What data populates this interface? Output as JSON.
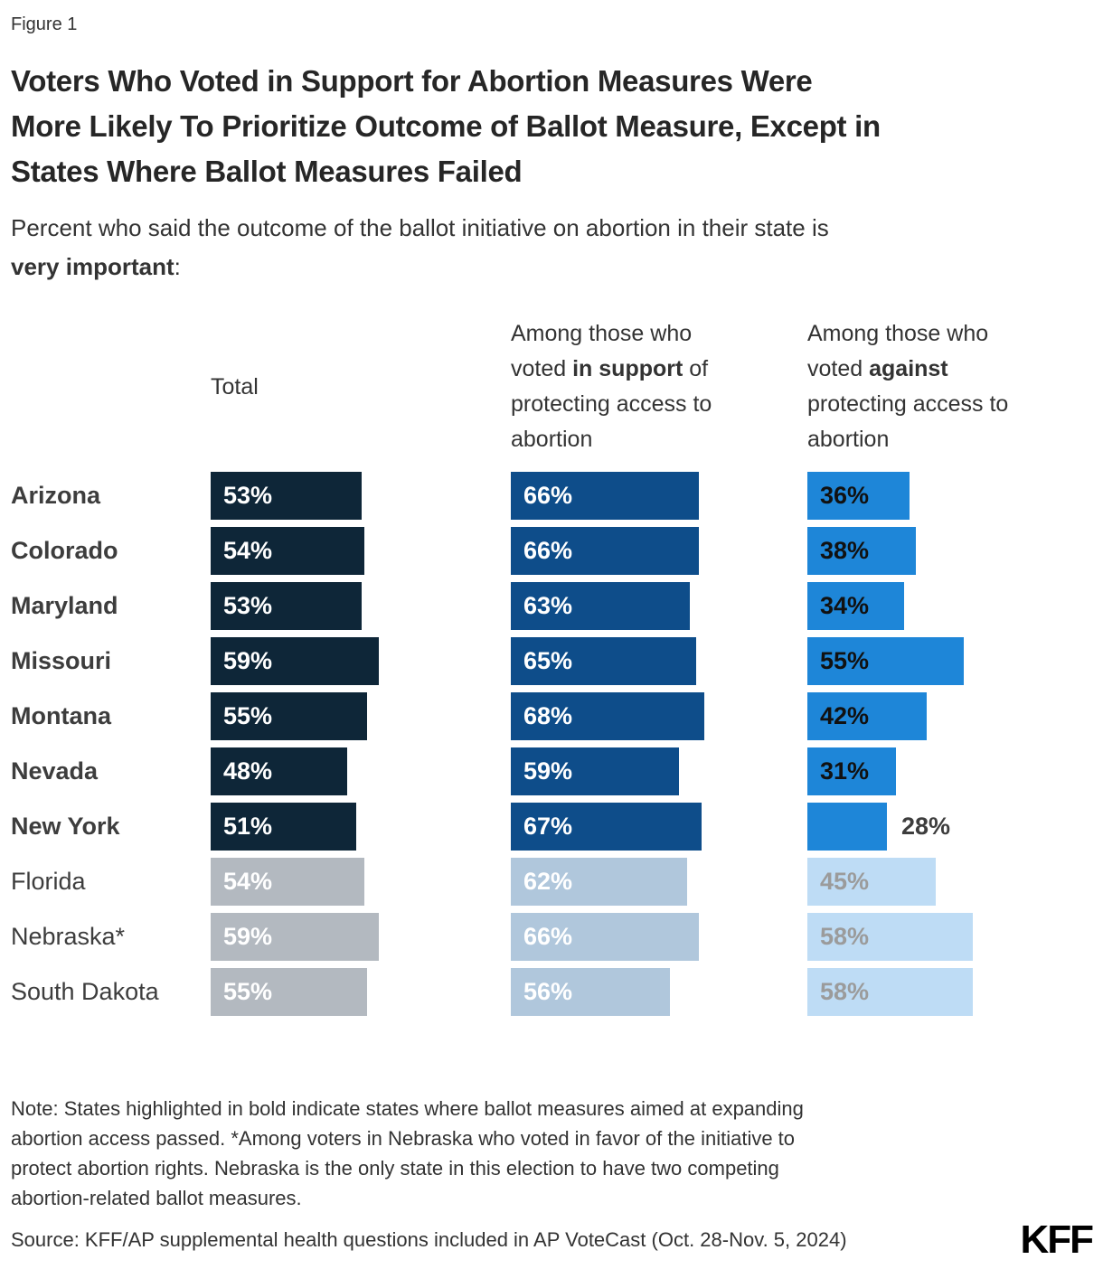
{
  "figure_label": "Figure 1",
  "title": {
    "lines": [
      "Voters Who Voted in Support for Abortion Measures Were",
      "More Likely To Prioritize Outcome of Ballot Measure, Except in",
      "States Where Ballot Measures Failed"
    ]
  },
  "subtitle": {
    "line1": "Percent who said the outcome of the ballot initiative on abortion in their state is",
    "line2_bold": "very important",
    "line2_suffix": ":"
  },
  "columns": {
    "total": {
      "label": "Total"
    },
    "support": {
      "lines": [
        [
          {
            "t": "Among those who"
          }
        ],
        [
          {
            "t": "voted "
          },
          {
            "t": "in support",
            "b": true
          },
          {
            "t": " of"
          }
        ],
        [
          {
            "t": "protecting access to"
          }
        ],
        [
          {
            "t": "abortion"
          }
        ]
      ]
    },
    "against": {
      "lines": [
        [
          {
            "t": "Among those who"
          }
        ],
        [
          {
            "t": "voted "
          },
          {
            "t": "against",
            "b": true
          }
        ],
        [
          {
            "t": "protecting access to"
          }
        ],
        [
          {
            "t": "abortion"
          }
        ]
      ]
    }
  },
  "rows": [
    {
      "state": "Arizona",
      "passed": true,
      "total": 53,
      "support": 66,
      "against": 36
    },
    {
      "state": "Colorado",
      "passed": true,
      "total": 54,
      "support": 66,
      "against": 38
    },
    {
      "state": "Maryland",
      "passed": true,
      "total": 53,
      "support": 63,
      "against": 34
    },
    {
      "state": "Missouri",
      "passed": true,
      "total": 59,
      "support": 65,
      "against": 55
    },
    {
      "state": "Montana",
      "passed": true,
      "total": 55,
      "support": 68,
      "against": 42
    },
    {
      "state": "Nevada",
      "passed": true,
      "total": 48,
      "support": 59,
      "against": 31
    },
    {
      "state": "New York",
      "passed": true,
      "total": 51,
      "support": 67,
      "against": 28,
      "against_label_outside": true
    },
    {
      "state": "Florida",
      "passed": false,
      "total": 54,
      "support": 62,
      "against": 45
    },
    {
      "state": "Nebraska*",
      "passed": false,
      "total": 59,
      "support": 66,
      "against": 58
    },
    {
      "state": "South Dakota",
      "passed": false,
      "total": 55,
      "support": 56,
      "against": 58
    }
  ],
  "colors": {
    "passed": {
      "total": "#0E2638",
      "support": "#0E4D8A",
      "against": "#1E86D8",
      "value_total": "#FFFFFF",
      "value_support": "#FFFFFF",
      "value_against": "#111111"
    },
    "failed": {
      "total": "#B3B9C0",
      "support": "#B0C7DC",
      "against": "#BEDCF5",
      "value_total": "#FFFFFF",
      "value_support": "#FFFFFF",
      "value_against": "#9B9B9B"
    },
    "outside_label": "#3D3D3D"
  },
  "note": {
    "lines": [
      "Note: States highlighted in bold indicate states where ballot measures aimed at expanding",
      "abortion access passed. *Among voters in Nebraska who voted in favor of the initiative to",
      "protect abortion rights. Nebraska is the only state in this election to have two competing",
      "abortion-related ballot measures."
    ]
  },
  "source": "Source: KFF/AP supplemental health questions included in AP VoteCast (Oct. 28-Nov. 5, 2024)",
  "logo": "KFF",
  "chart_data": {
    "type": "bar",
    "orientation": "horizontal",
    "title": "Voters Who Voted in Support for Abortion Measures Were More Likely To Prioritize Outcome of Ballot Measure, Except in States Where Ballot Measures Failed",
    "subtitle": "Percent who said the outcome of the ballot initiative on abortion in their state is very important:",
    "categories": [
      "Arizona",
      "Colorado",
      "Maryland",
      "Missouri",
      "Montana",
      "Nevada",
      "New York",
      "Florida",
      "Nebraska*",
      "South Dakota"
    ],
    "series": [
      {
        "name": "Total",
        "values": [
          53,
          54,
          53,
          59,
          55,
          48,
          51,
          54,
          59,
          55
        ]
      },
      {
        "name": "Among those who voted in support of protecting access to abortion",
        "values": [
          66,
          66,
          63,
          65,
          68,
          59,
          67,
          62,
          66,
          56
        ]
      },
      {
        "name": "Among those who voted against protecting access to abortion",
        "values": [
          36,
          38,
          34,
          55,
          42,
          31,
          28,
          45,
          58,
          58
        ]
      }
    ],
    "units": "%",
    "xlim": [
      0,
      100
    ],
    "grid": false,
    "legend_position": "column-headers-top",
    "highlight_note": "Dark/bold rows = states where abortion-access ballot measures passed; gray rows (Florida, Nebraska*, South Dakota) = states where measures failed"
  }
}
